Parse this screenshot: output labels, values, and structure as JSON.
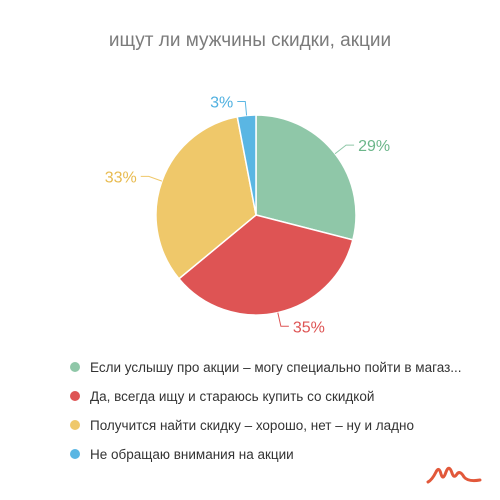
{
  "chart_data": {
    "type": "pie",
    "title": "ищут ли мужчины скидки, акции",
    "series": [
      {
        "name": "Если услышу про акции – могу специально пойти в магаз...",
        "value": 29,
        "label": "29%",
        "color": "#8fc7a8",
        "label_color": "#6cb68a"
      },
      {
        "name": "Да, всегда ищу и стараюсь купить со скидкой",
        "value": 35,
        "label": "35%",
        "color": "#de5454",
        "label_color": "#de5454"
      },
      {
        "name": "Получится найти скидку – хорошо, нет – ну и ладно",
        "value": 33,
        "label": "33%",
        "color": "#efc86a",
        "label_color": "#e8bb4f"
      },
      {
        "name": "Не обращаю внимания на акции",
        "value": 3,
        "label": "3%",
        "color": "#5ab6e3",
        "label_color": "#4fb0e0"
      }
    ],
    "legend_position": "bottom",
    "start_angle": "top, clockwise"
  },
  "logo": {
    "icon": "brand-logo-icon",
    "color": "#e2583a"
  }
}
